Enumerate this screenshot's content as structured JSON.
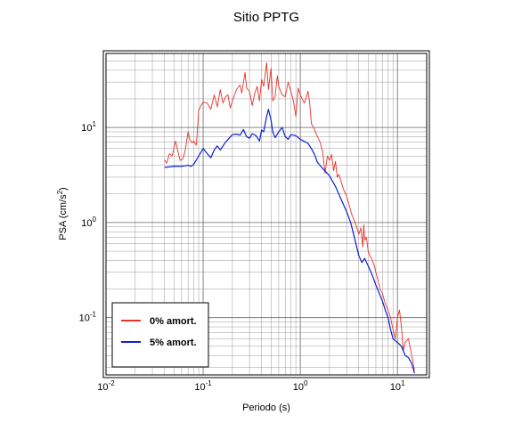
{
  "chart_data": {
    "type": "line",
    "title": "Sitio PPTG",
    "xlabel": "Periodo (s)",
    "ylabel_main": "PSA (cm/s",
    "ylabel_sup": "2",
    "ylabel_end": ")",
    "xscale": "log",
    "yscale": "log",
    "xlim": [
      0.01,
      20
    ],
    "ylim": [
      0.025,
      60
    ],
    "grid": true,
    "legend_position": "bottom-left",
    "x_ticks": [
      {
        "base": "10",
        "exp": "-2",
        "value": 0.01
      },
      {
        "base": "10",
        "exp": "-1",
        "value": 0.1
      },
      {
        "base": "10",
        "exp": "0",
        "value": 1
      },
      {
        "base": "10",
        "exp": "1",
        "value": 10
      }
    ],
    "y_ticks": [
      {
        "base": "10",
        "exp": "-1",
        "value": 0.1
      },
      {
        "base": "10",
        "exp": "0",
        "value": 1
      },
      {
        "base": "10",
        "exp": "1",
        "value": 10
      }
    ],
    "series": [
      {
        "name": "0% amort.",
        "color": "#e8332a",
        "points": [
          [
            0.04,
            4.6
          ],
          [
            0.042,
            4.2
          ],
          [
            0.045,
            5.3
          ],
          [
            0.048,
            5.0
          ],
          [
            0.05,
            6.1
          ],
          [
            0.052,
            7.2
          ],
          [
            0.055,
            5.6
          ],
          [
            0.058,
            4.5
          ],
          [
            0.062,
            4.7
          ],
          [
            0.065,
            5.6
          ],
          [
            0.07,
            9.0
          ],
          [
            0.073,
            7.4
          ],
          [
            0.077,
            6.9
          ],
          [
            0.08,
            7.2
          ],
          [
            0.085,
            6.5
          ],
          [
            0.09,
            15.0
          ],
          [
            0.095,
            17.0
          ],
          [
            0.1,
            18.5
          ],
          [
            0.11,
            18.0
          ],
          [
            0.12,
            15.5
          ],
          [
            0.13,
            22.0
          ],
          [
            0.14,
            16.5
          ],
          [
            0.15,
            25.0
          ],
          [
            0.16,
            18.0
          ],
          [
            0.17,
            21.0
          ],
          [
            0.18,
            22.0
          ],
          [
            0.19,
            16.0
          ],
          [
            0.2,
            19.0
          ],
          [
            0.22,
            25.0
          ],
          [
            0.24,
            28.0
          ],
          [
            0.25,
            23.0
          ],
          [
            0.27,
            38.0
          ],
          [
            0.28,
            26.0
          ],
          [
            0.3,
            24.0
          ],
          [
            0.32,
            17.0
          ],
          [
            0.34,
            23.0
          ],
          [
            0.36,
            27.0
          ],
          [
            0.38,
            19.0
          ],
          [
            0.4,
            32.0
          ],
          [
            0.42,
            27.0
          ],
          [
            0.45,
            48.0
          ],
          [
            0.47,
            25.0
          ],
          [
            0.5,
            42.0
          ],
          [
            0.52,
            19.0
          ],
          [
            0.55,
            21.0
          ],
          [
            0.58,
            35.0
          ],
          [
            0.6,
            27.0
          ],
          [
            0.65,
            22.0
          ],
          [
            0.7,
            21.0
          ],
          [
            0.75,
            30.0
          ],
          [
            0.8,
            24.0
          ],
          [
            0.85,
            19.0
          ],
          [
            0.9,
            13.0
          ],
          [
            0.95,
            26.0
          ],
          [
            1.0,
            22.0
          ],
          [
            1.1,
            18.0
          ],
          [
            1.2,
            24.0
          ],
          [
            1.25,
            18.0
          ],
          [
            1.3,
            11.0
          ],
          [
            1.4,
            9.5
          ],
          [
            1.5,
            8.0
          ],
          [
            1.6,
            7.0
          ],
          [
            1.7,
            5.5
          ],
          [
            1.8,
            3.3
          ],
          [
            1.9,
            5.0
          ],
          [
            2.0,
            4.5
          ],
          [
            2.1,
            5.2
          ],
          [
            2.2,
            3.5
          ],
          [
            2.3,
            4.4
          ],
          [
            2.4,
            3.0
          ],
          [
            2.5,
            3.2
          ],
          [
            2.6,
            2.8
          ],
          [
            2.8,
            2.2
          ],
          [
            3.0,
            1.9
          ],
          [
            3.2,
            1.5
          ],
          [
            3.4,
            1.2
          ],
          [
            3.6,
            1.05
          ],
          [
            3.8,
            0.9
          ],
          [
            4.0,
            0.75
          ],
          [
            4.2,
            0.88
          ],
          [
            4.4,
            0.55
          ],
          [
            4.5,
            0.95
          ],
          [
            4.6,
            0.65
          ],
          [
            4.8,
            0.7
          ],
          [
            5.0,
            0.5
          ],
          [
            5.2,
            0.45
          ],
          [
            5.5,
            0.4
          ],
          [
            5.8,
            0.35
          ],
          [
            6.0,
            0.3
          ],
          [
            6.3,
            0.25
          ],
          [
            6.6,
            0.2
          ],
          [
            7.0,
            0.18
          ],
          [
            7.5,
            0.14
          ],
          [
            8.0,
            0.12
          ],
          [
            8.5,
            0.1
          ],
          [
            9.0,
            0.075
          ],
          [
            9.5,
            0.06
          ],
          [
            10.0,
            0.1
          ],
          [
            10.5,
            0.12
          ],
          [
            11.0,
            0.08
          ],
          [
            11.5,
            0.045
          ],
          [
            12.0,
            0.055
          ],
          [
            13.0,
            0.06
          ],
          [
            14.0,
            0.04
          ],
          [
            15.0,
            0.028
          ]
        ]
      },
      {
        "name": "5% amort.",
        "color": "#0b1fd6",
        "points": [
          [
            0.04,
            3.8
          ],
          [
            0.045,
            3.85
          ],
          [
            0.05,
            3.9
          ],
          [
            0.055,
            3.9
          ],
          [
            0.06,
            3.9
          ],
          [
            0.065,
            3.95
          ],
          [
            0.07,
            4.0
          ],
          [
            0.075,
            3.9
          ],
          [
            0.08,
            4.1
          ],
          [
            0.09,
            5.0
          ],
          [
            0.1,
            6.0
          ],
          [
            0.11,
            5.3
          ],
          [
            0.12,
            4.8
          ],
          [
            0.13,
            5.8
          ],
          [
            0.14,
            6.4
          ],
          [
            0.15,
            5.8
          ],
          [
            0.17,
            7.0
          ],
          [
            0.2,
            8.4
          ],
          [
            0.22,
            8.5
          ],
          [
            0.24,
            8.3
          ],
          [
            0.26,
            9.5
          ],
          [
            0.28,
            8.0
          ],
          [
            0.3,
            7.7
          ],
          [
            0.32,
            8.6
          ],
          [
            0.35,
            8.2
          ],
          [
            0.38,
            7.2
          ],
          [
            0.4,
            9.4
          ],
          [
            0.42,
            9.0
          ],
          [
            0.45,
            13.0
          ],
          [
            0.47,
            15.5
          ],
          [
            0.5,
            12.0
          ],
          [
            0.52,
            9.0
          ],
          [
            0.55,
            7.8
          ],
          [
            0.6,
            9.0
          ],
          [
            0.65,
            10.0
          ],
          [
            0.7,
            8.0
          ],
          [
            0.75,
            7.5
          ],
          [
            0.8,
            8.4
          ],
          [
            0.9,
            8.2
          ],
          [
            1.0,
            7.5
          ],
          [
            1.2,
            6.8
          ],
          [
            1.3,
            6.0
          ],
          [
            1.4,
            5.2
          ],
          [
            1.5,
            4.3
          ],
          [
            1.7,
            3.7
          ],
          [
            2.0,
            3.1
          ],
          [
            2.3,
            2.4
          ],
          [
            2.6,
            1.8
          ],
          [
            3.0,
            1.3
          ],
          [
            3.3,
            1.0
          ],
          [
            3.6,
            0.7
          ],
          [
            4.0,
            0.45
          ],
          [
            4.3,
            0.38
          ],
          [
            4.6,
            0.42
          ],
          [
            5.0,
            0.35
          ],
          [
            5.5,
            0.28
          ],
          [
            6.0,
            0.22
          ],
          [
            6.5,
            0.18
          ],
          [
            7.0,
            0.15
          ],
          [
            7.5,
            0.12
          ],
          [
            8.0,
            0.1
          ],
          [
            8.5,
            0.075
          ],
          [
            9.0,
            0.06
          ],
          [
            10.0,
            0.055
          ],
          [
            11.0,
            0.05
          ],
          [
            12.0,
            0.04
          ],
          [
            13.0,
            0.038
          ],
          [
            14.0,
            0.033
          ],
          [
            15.0,
            0.026
          ]
        ]
      }
    ]
  }
}
